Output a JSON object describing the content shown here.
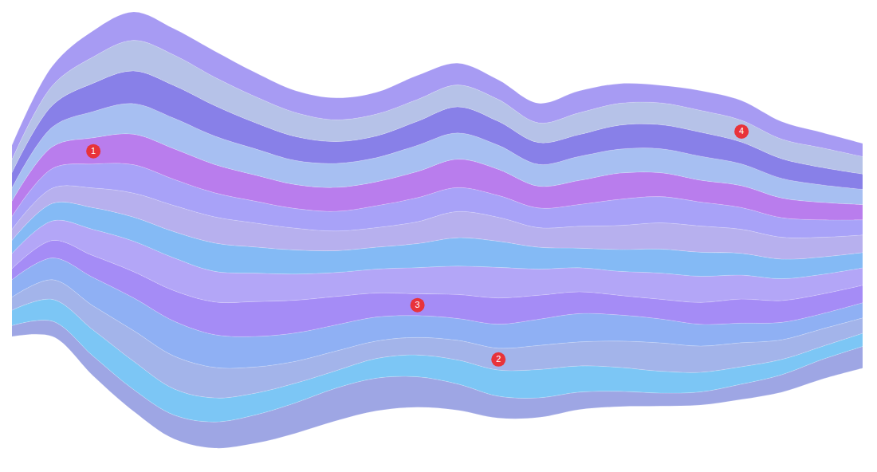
{
  "chart_data": {
    "type": "area",
    "stacked": true,
    "tick_labels": false,
    "grid": false,
    "x": [
      0,
      1,
      2,
      3,
      4,
      5,
      6,
      7,
      8,
      9,
      10,
      11,
      12,
      13,
      14,
      15,
      16,
      17,
      18,
      19,
      20,
      21
    ],
    "series": [
      {
        "color": "#9ea6e4",
        "values": [
          10,
          14,
          18,
          20,
          22,
          24,
          26,
          28,
          30,
          30,
          28,
          24,
          20,
          18,
          16,
          14,
          12,
          12,
          14,
          16,
          18,
          20
        ]
      },
      {
        "color": "#7cc6f5",
        "values": [
          14,
          20,
          24,
          26,
          24,
          22,
          20,
          18,
          16,
          18,
          20,
          22,
          24,
          26,
          24,
          22,
          20,
          18,
          16,
          14,
          12,
          12
        ]
      },
      {
        "color": "#a3b4ea",
        "values": [
          12,
          18,
          22,
          28,
          30,
          28,
          24,
          20,
          18,
          16,
          16,
          18,
          20,
          22,
          22,
          24,
          26,
          24,
          22,
          18,
          16,
          14
        ]
      },
      {
        "color": "#8fb0f4",
        "values": [
          16,
          20,
          26,
          30,
          32,
          30,
          28,
          26,
          24,
          22,
          20,
          20,
          22,
          24,
          26,
          24,
          22,
          20,
          18,
          16,
          14,
          14
        ]
      },
      {
        "color": "#a58cf6",
        "values": [
          10,
          16,
          20,
          24,
          28,
          30,
          32,
          30,
          26,
          22,
          20,
          22,
          24,
          22,
          20,
          18,
          18,
          20,
          22,
          20,
          18,
          16
        ]
      },
      {
        "color": "#b3a6f7",
        "values": [
          14,
          18,
          24,
          28,
          30,
          28,
          26,
          24,
          22,
          22,
          24,
          26,
          28,
          24,
          22,
          22,
          24,
          24,
          22,
          20,
          18,
          16
        ]
      },
      {
        "color": "#84baf5",
        "values": [
          12,
          16,
          20,
          22,
          24,
          26,
          24,
          22,
          20,
          20,
          22,
          26,
          24,
          20,
          18,
          20,
          22,
          22,
          20,
          18,
          16,
          14
        ]
      },
      {
        "color": "#b7b0ee",
        "values": [
          10,
          14,
          18,
          22,
          24,
          24,
          22,
          20,
          18,
          18,
          20,
          24,
          22,
          18,
          20,
          22,
          24,
          24,
          22,
          20,
          18,
          16
        ]
      },
      {
        "color": "#a8a2f8",
        "values": [
          12,
          18,
          22,
          26,
          24,
          22,
          20,
          18,
          18,
          20,
          22,
          22,
          20,
          18,
          20,
          24,
          24,
          22,
          20,
          18,
          16,
          14
        ]
      },
      {
        "color": "#b97ded",
        "values": [
          14,
          20,
          24,
          28,
          28,
          26,
          24,
          22,
          22,
          22,
          24,
          26,
          24,
          20,
          22,
          24,
          22,
          20,
          20,
          18,
          16,
          14
        ]
      },
      {
        "color": "#a7bff2",
        "values": [
          12,
          18,
          24,
          28,
          28,
          26,
          24,
          22,
          22,
          22,
          24,
          24,
          22,
          20,
          22,
          22,
          22,
          22,
          20,
          18,
          16,
          14
        ]
      },
      {
        "color": "#8880e8",
        "values": [
          14,
          20,
          26,
          30,
          30,
          28,
          24,
          22,
          20,
          20,
          22,
          24,
          22,
          20,
          20,
          22,
          22,
          22,
          20,
          18,
          16,
          14
        ]
      },
      {
        "color": "#b6c2e8",
        "values": [
          12,
          18,
          24,
          28,
          28,
          26,
          24,
          22,
          20,
          20,
          20,
          20,
          20,
          18,
          20,
          20,
          20,
          20,
          20,
          18,
          18,
          16
        ]
      },
      {
        "color": "#a79bf3",
        "values": [
          13,
          18,
          24,
          26,
          24,
          24,
          22,
          20,
          20,
          20,
          22,
          20,
          18,
          18,
          20,
          18,
          16,
          18,
          18,
          16,
          14,
          12
        ]
      }
    ],
    "annotations": [
      {
        "label": "1",
        "x": 2,
        "series": 9
      },
      {
        "label": "2",
        "x": 12,
        "series": 2
      },
      {
        "label": "3",
        "x": 10,
        "series": 4
      },
      {
        "label": "4",
        "x": 18,
        "series": 12
      }
    ]
  }
}
